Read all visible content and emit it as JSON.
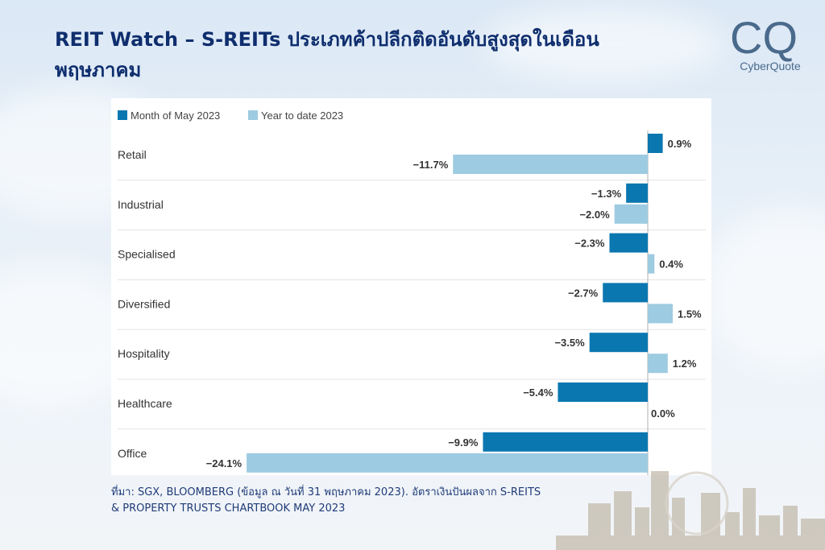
{
  "header": {
    "title_line1": "REIT Watch – S-REITs ประเภทค้าปลีกติดอันดับสูงสุดในเดือน",
    "title_line2": "พฤษภาคม"
  },
  "logo": {
    "mark": "CQ",
    "name": "CyberQuote"
  },
  "source": {
    "line1": "ที่มา: SGX, BLOOMBERG (ข้อมูล ณ วันที่ 31 พฤษภาคม 2023). อัตราเงินปันผลจาก S-REITS",
    "line2": "& PROPERTY TRUSTS CHARTBOOK MAY 2023"
  },
  "colors": {
    "month": "#0b77b0",
    "ytd": "#9dcbe1",
    "title": "#0f2e6e"
  },
  "chart_data": {
    "type": "bar",
    "orientation": "horizontal",
    "categories": [
      "Retail",
      "Industrial",
      "Specialised",
      "Diversified",
      "Hospitality",
      "Healthcare",
      "Office"
    ],
    "series": [
      {
        "name": "Month of May 2023",
        "values": [
          0.9,
          -1.3,
          -2.3,
          -2.7,
          -3.5,
          -5.4,
          -9.9
        ],
        "labels": [
          "0.9%",
          "−1.3%",
          "−2.3%",
          "−2.7%",
          "−3.5%",
          "−5.4%",
          "−9.9%"
        ]
      },
      {
        "name": "Year to date 2023",
        "values": [
          -11.7,
          -2.0,
          0.4,
          1.5,
          1.2,
          0.0,
          -24.1
        ],
        "labels": [
          "−11.7%",
          "−2.0%",
          "0.4%",
          "1.5%",
          "1.2%",
          "0.0%",
          "−24.1%"
        ]
      }
    ],
    "legend_position": "top-left",
    "grid": false,
    "xlim": [
      -24.1,
      3.0
    ]
  }
}
